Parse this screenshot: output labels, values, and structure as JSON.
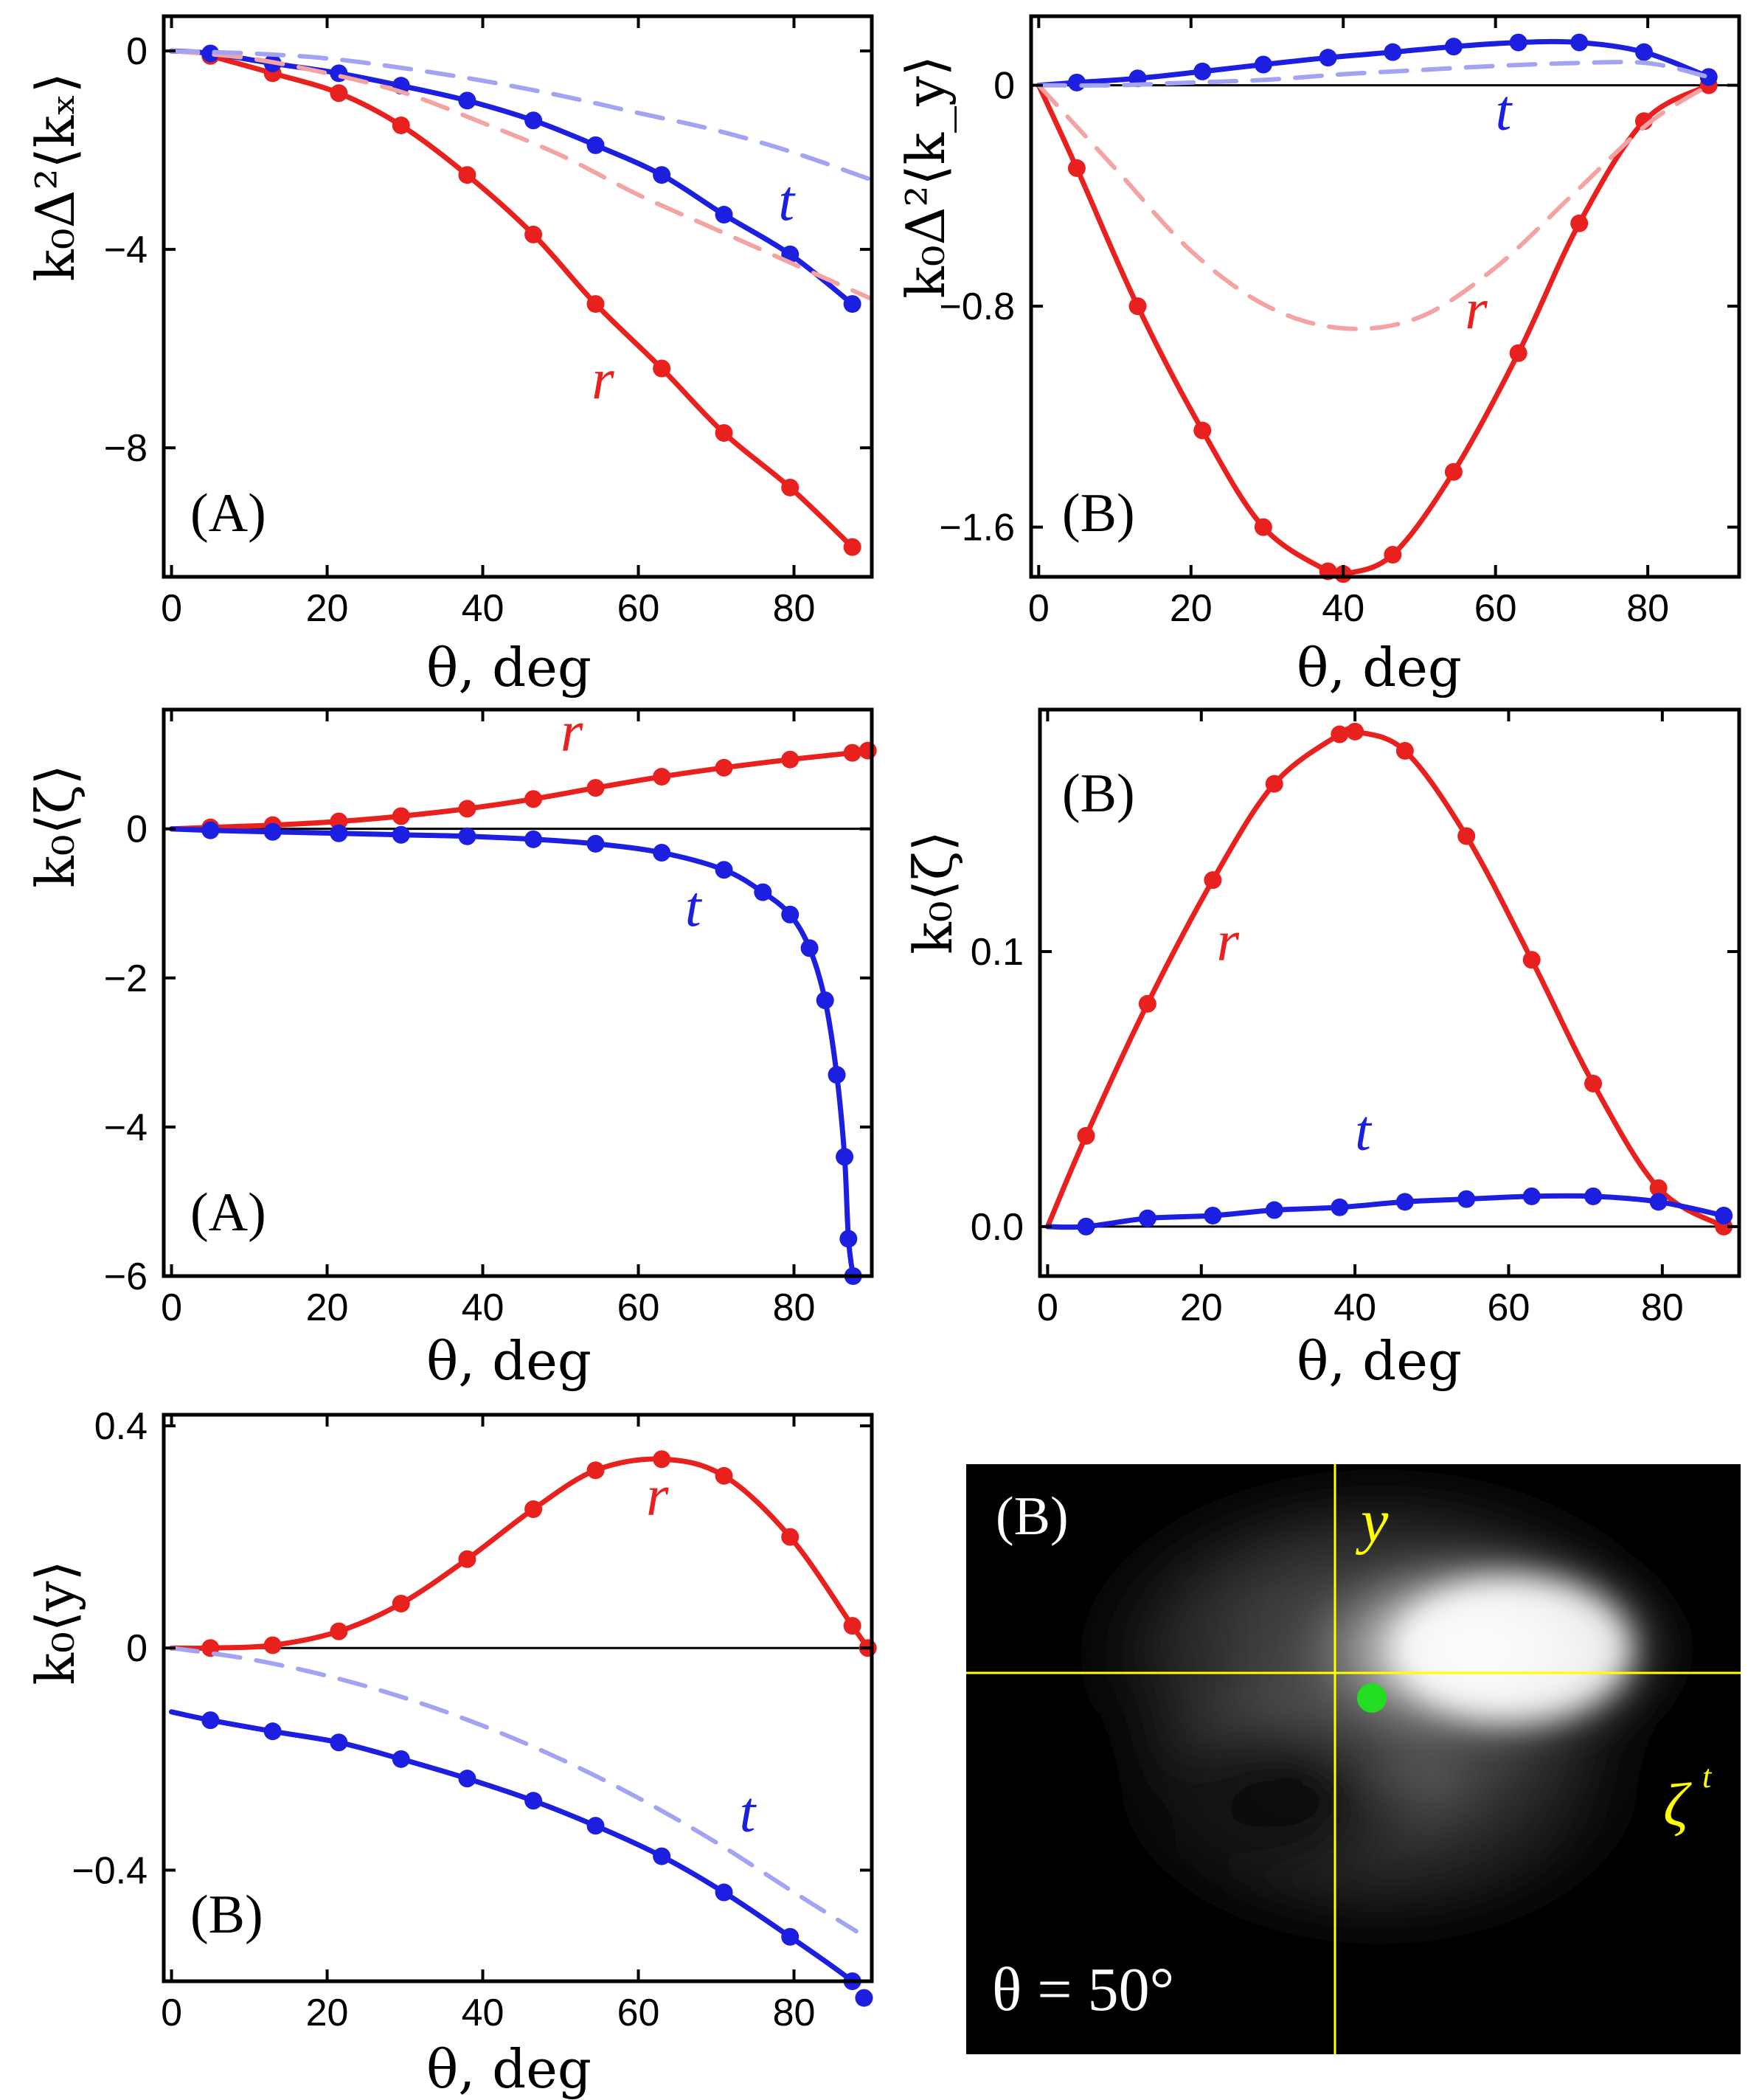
{
  "colors": {
    "r": "#e8211e",
    "t": "#1c1ee0",
    "r_dash": "#f4a3a3",
    "t_dash": "#a3a3f4",
    "guide": "#ffff00",
    "dot": "#22dd22"
  },
  "chart_data": [
    {
      "id": "p1",
      "type": "line",
      "tag": "(A)",
      "ylabel": "k₀Δ²⟨kₓ⟩",
      "xlabel": "θ, deg",
      "xlim": [
        -1,
        90
      ],
      "ylim": [
        -10.6,
        0.7
      ],
      "xticks": [
        0,
        20,
        40,
        60,
        80
      ],
      "yticks": [
        0,
        -4,
        -8
      ],
      "yticklabels": [
        "0",
        "−4",
        "−8"
      ],
      "xticklabels": [
        "0",
        "20",
        "40",
        "60",
        "80"
      ],
      "series": [
        {
          "name": "r",
          "label": "r",
          "color_key": "r",
          "label_at": [
            54,
            -7.0
          ],
          "x": [
            5,
            13,
            21.5,
            29.5,
            38,
            46.5,
            54.5,
            63,
            71,
            79.5,
            87.5
          ],
          "values": [
            -0.1,
            -0.45,
            -0.85,
            -1.5,
            -2.5,
            -3.7,
            -5.1,
            -6.4,
            -7.7,
            -8.8,
            -10.0
          ]
        },
        {
          "name": "t",
          "label": "t",
          "color_key": "t",
          "label_at": [
            78,
            -3.4
          ],
          "x": [
            0,
            5,
            13,
            21.5,
            29.5,
            38,
            46.5,
            54.5,
            63,
            71,
            79.5,
            87.5
          ],
          "values": [
            0,
            -0.05,
            -0.25,
            -0.45,
            -0.7,
            -1.0,
            -1.4,
            -1.9,
            -2.5,
            -3.3,
            -4.1,
            -5.1
          ]
        },
        {
          "name": "r approx",
          "color_key": "r_dash",
          "dashed": true,
          "x": [
            0,
            10,
            20,
            30,
            40,
            50,
            60,
            70,
            80,
            90
          ],
          "values": [
            0,
            -0.15,
            -0.45,
            -0.85,
            -1.45,
            -2.1,
            -2.9,
            -3.6,
            -4.3,
            -5.0
          ]
        },
        {
          "name": "t approx",
          "color_key": "t_dash",
          "dashed": true,
          "x": [
            0,
            10,
            20,
            30,
            40,
            50,
            60,
            70,
            80,
            90
          ],
          "values": [
            0,
            -0.05,
            -0.15,
            -0.35,
            -0.6,
            -0.9,
            -1.25,
            -1.6,
            -2.05,
            -2.6
          ]
        }
      ]
    },
    {
      "id": "p2",
      "type": "line",
      "tag": "(B)",
      "ylabel": "k₀Δ²⟨k_y⟩",
      "xlabel": "θ, deg",
      "xlim": [
        -1,
        92
      ],
      "ylim": [
        -1.78,
        0.25
      ],
      "xticks": [
        0,
        20,
        40,
        60,
        80
      ],
      "yticks": [
        0,
        -0.8,
        -1.6
      ],
      "yticklabels": [
        "0",
        "−0.8",
        "−1.6"
      ],
      "xticklabels": [
        "0",
        "20",
        "40",
        "60",
        "80"
      ],
      "zero_line": true,
      "series": [
        {
          "name": "r",
          "label": "r",
          "color_key": "r",
          "label_at": [
            56,
            -0.88
          ],
          "x": [
            0,
            5,
            13,
            21.5,
            29.5,
            38,
            40,
            46.5,
            54.5,
            63,
            71,
            79.5,
            88
          ],
          "values": [
            0,
            -0.3,
            -0.8,
            -1.25,
            -1.6,
            -1.76,
            -1.77,
            -1.7,
            -1.4,
            -0.97,
            -0.5,
            -0.13,
            0
          ]
        },
        {
          "name": "t",
          "label": "t",
          "color_key": "t",
          "label_at": [
            60,
            -0.16
          ],
          "x": [
            0,
            5,
            13,
            21.5,
            29.5,
            38,
            46.5,
            54.5,
            63,
            71,
            79.5,
            88
          ],
          "values": [
            0,
            0.01,
            0.025,
            0.05,
            0.075,
            0.1,
            0.12,
            0.14,
            0.155,
            0.155,
            0.12,
            0.03
          ]
        },
        {
          "name": "r approx",
          "color_key": "r_dash",
          "dashed": true,
          "x": [
            0,
            10,
            20,
            30,
            40,
            50,
            60,
            70,
            80,
            88
          ],
          "values": [
            0,
            -0.3,
            -0.6,
            -0.8,
            -0.88,
            -0.84,
            -0.66,
            -0.4,
            -0.14,
            0
          ]
        },
        {
          "name": "t approx",
          "color_key": "t_dash",
          "dashed": true,
          "x": [
            0,
            10,
            20,
            30,
            40,
            50,
            60,
            70,
            80,
            88
          ],
          "values": [
            0,
            0.0,
            0.01,
            0.02,
            0.04,
            0.055,
            0.07,
            0.08,
            0.08,
            0.03
          ]
        }
      ]
    },
    {
      "id": "p3",
      "type": "line",
      "tag": "(A)",
      "ylabel": "k₀⟨ζ⟩",
      "xlabel": "θ, deg",
      "xlim": [
        -1,
        90
      ],
      "ylim": [
        -6.0,
        1.6
      ],
      "xticks": [
        0,
        20,
        40,
        60,
        80
      ],
      "yticks": [
        0,
        -2,
        -4,
        -6
      ],
      "yticklabels": [
        "0",
        "−2",
        "−4",
        "−6"
      ],
      "xticklabels": [
        "0",
        "20",
        "40",
        "60",
        "80"
      ],
      "zero_line": true,
      "series": [
        {
          "name": "r",
          "label": "r",
          "color_key": "r",
          "label_at": [
            50,
            1.05
          ],
          "x": [
            0,
            5,
            13,
            21.5,
            29.5,
            38,
            46.5,
            54.5,
            63,
            71,
            79.5,
            87.5,
            89.5
          ],
          "values": [
            0,
            0.02,
            0.05,
            0.1,
            0.17,
            0.27,
            0.4,
            0.55,
            0.7,
            0.82,
            0.93,
            1.02,
            1.05
          ]
        },
        {
          "name": "t",
          "label": "t",
          "color_key": "t",
          "label_at": [
            66,
            -1.3
          ],
          "x": [
            0,
            5,
            13,
            21.5,
            29.5,
            38,
            46.5,
            54.5,
            63,
            71,
            76,
            79.5,
            82,
            84,
            85.5,
            86.5,
            87,
            87.6
          ],
          "values": [
            0,
            -0.02,
            -0.04,
            -0.06,
            -0.08,
            -0.1,
            -0.14,
            -0.2,
            -0.32,
            -0.55,
            -0.85,
            -1.15,
            -1.6,
            -2.3,
            -3.3,
            -4.4,
            -5.5,
            -6.0
          ]
        }
      ]
    },
    {
      "id": "p4",
      "type": "line",
      "tag": "(B)",
      "ylabel": "k₀⟨ζ⟩",
      "xlabel": "θ, deg",
      "xlim": [
        -1,
        90
      ],
      "ylim": [
        -0.018,
        0.188
      ],
      "xticks": [
        0,
        20,
        40,
        60,
        80
      ],
      "yticks": [
        0.0,
        0.1
      ],
      "yticklabels": [
        "0.0",
        "0.1"
      ],
      "xticklabels": [
        "0",
        "20",
        "40",
        "60",
        "80"
      ],
      "zero_line": true,
      "series": [
        {
          "name": "r",
          "label": "r",
          "color_key": "r",
          "label_at": [
            22,
            0.097
          ],
          "x": [
            0,
            5,
            13,
            21.5,
            29.5,
            38,
            40,
            46.5,
            54.5,
            63,
            71,
            79.5,
            88
          ],
          "values": [
            0,
            0.033,
            0.081,
            0.126,
            0.161,
            0.179,
            0.18,
            0.173,
            0.142,
            0.097,
            0.052,
            0.014,
            0
          ]
        },
        {
          "name": "t",
          "label": "t",
          "color_key": "t",
          "label_at": [
            40,
            0.028
          ],
          "x": [
            0,
            5,
            13,
            21.5,
            29.5,
            38,
            46.5,
            54.5,
            63,
            71,
            79.5,
            88
          ],
          "values": [
            0,
            0.0,
            0.003,
            0.004,
            0.006,
            0.007,
            0.009,
            0.01,
            0.011,
            0.011,
            0.009,
            0.004
          ]
        }
      ]
    },
    {
      "id": "p5",
      "type": "line",
      "tag": "(B)",
      "ylabel": "k₀⟨y⟩",
      "xlabel": "θ, deg",
      "xlim": [
        -1,
        90
      ],
      "ylim": [
        -0.6,
        0.42
      ],
      "xticks": [
        0,
        20,
        40,
        60,
        80
      ],
      "yticks": [
        0.4,
        0,
        -0.4
      ],
      "yticklabels": [
        "0.4",
        "0",
        "−0.4"
      ],
      "xticklabels": [
        "0",
        "20",
        "40",
        "60",
        "80"
      ],
      "zero_line": true,
      "series": [
        {
          "name": "r",
          "label": "r",
          "color_key": "r",
          "label_at": [
            61,
            0.24
          ],
          "x": [
            0,
            5,
            13,
            21.5,
            29.5,
            38,
            46.5,
            54.5,
            63,
            71,
            79.5,
            87.5,
            89.5
          ],
          "values": [
            0,
            0.0,
            0.005,
            0.03,
            0.08,
            0.16,
            0.25,
            0.32,
            0.34,
            0.31,
            0.2,
            0.04,
            0
          ]
        },
        {
          "name": "t",
          "label": "t",
          "color_key": "t",
          "label_at": [
            73,
            -0.33
          ],
          "x": [
            0,
            5,
            13,
            21.5,
            29.5,
            38,
            46.5,
            54.5,
            63,
            71,
            79.5,
            87.5,
            89
          ],
          "values": [
            -0.115,
            -0.13,
            -0.15,
            -0.17,
            -0.2,
            -0.235,
            -0.275,
            -0.32,
            -0.375,
            -0.44,
            -0.52,
            -0.6,
            -0.63
          ]
        },
        {
          "name": "t approx",
          "color_key": "t_dash",
          "dashed": true,
          "x": [
            0,
            10,
            20,
            30,
            40,
            50,
            60,
            70,
            80,
            88
          ],
          "values": [
            0,
            -0.02,
            -0.05,
            -0.09,
            -0.14,
            -0.2,
            -0.27,
            -0.35,
            -0.44,
            -0.51
          ]
        }
      ]
    },
    {
      "id": "p6",
      "type": "heatmap",
      "tag": "(B)",
      "annotation": "θ = 50°",
      "axis_y": "y",
      "axis_zeta": "ζ",
      "zeta_sup": "t"
    }
  ]
}
